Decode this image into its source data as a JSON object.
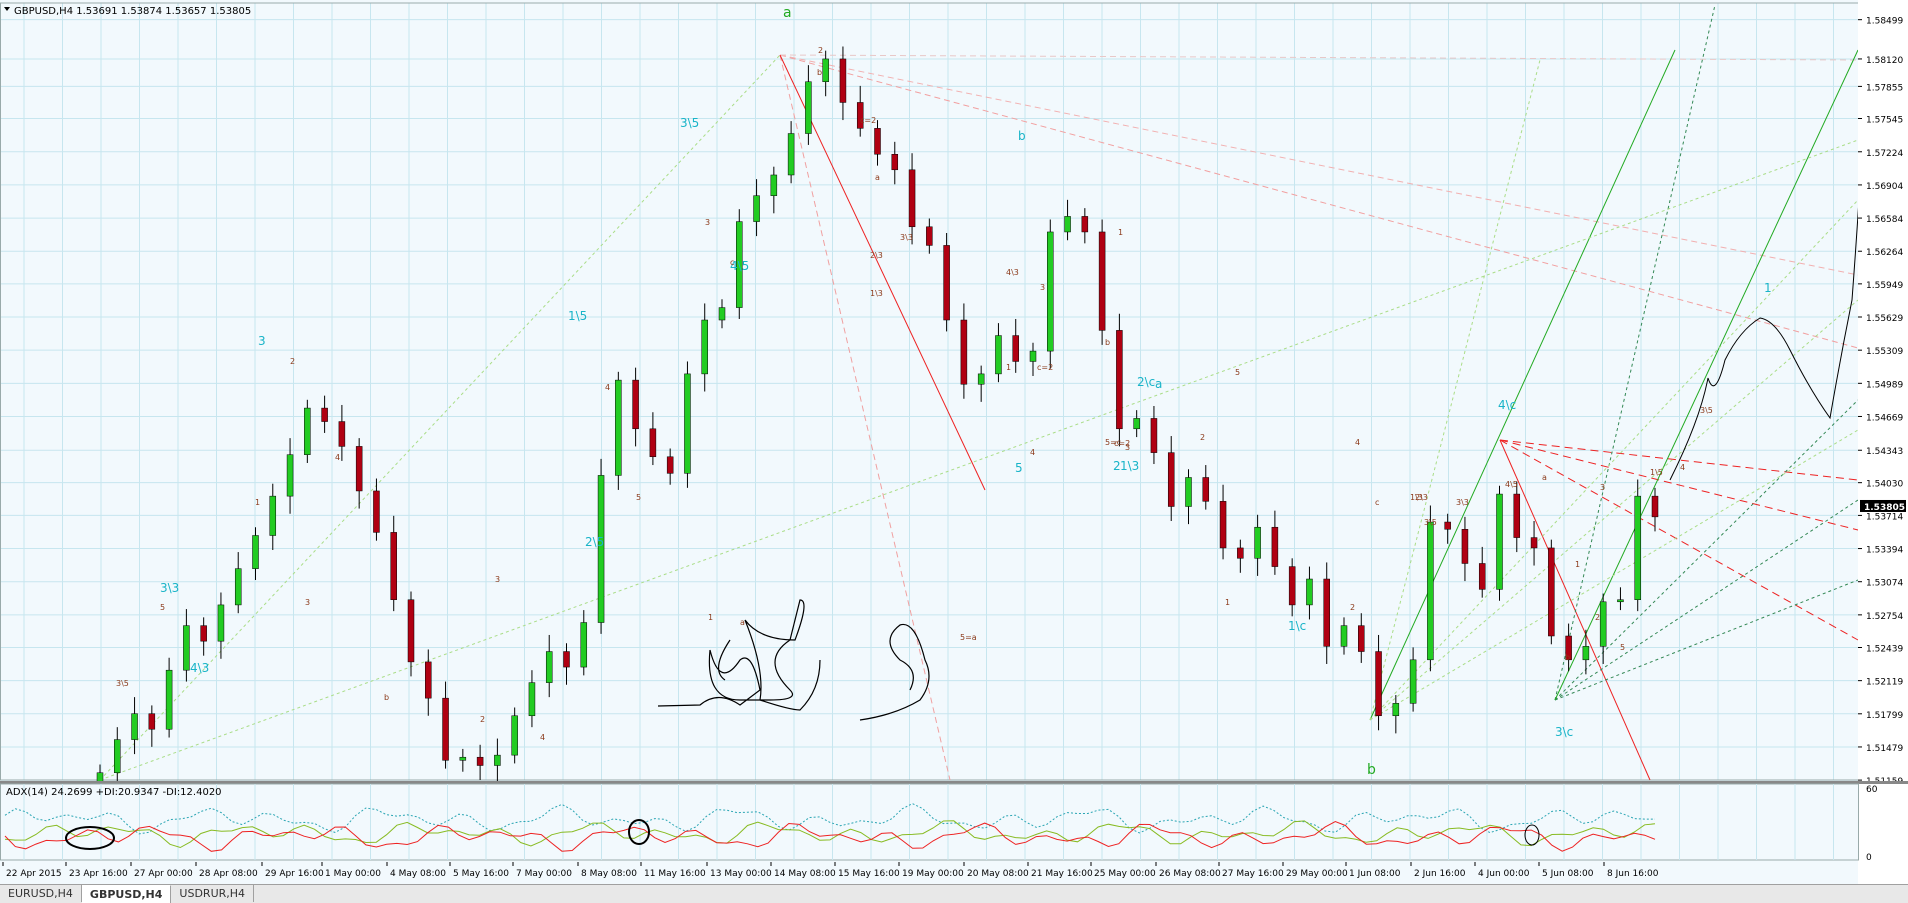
{
  "window": {
    "symbol_header": "GBPUSD,H4  1.53691 1.53874 1.53657 1.53805",
    "indicator_header": "ADX(14) 24.2699 +DI:20.9347 -DI:12.4020"
  },
  "tabs": [
    {
      "label": "EURUSD,H4",
      "active": false
    },
    {
      "label": "GBPUSD,H4",
      "active": true
    },
    {
      "label": "USDRUR,H4",
      "active": false
    }
  ],
  "colors": {
    "background": "#f2f9fd",
    "grid": "#c7e6ef",
    "bull": "#22cc22",
    "bear": "#b00012",
    "wave_label_cyan": "#19b4c8",
    "wave_label_green": "#22aa22",
    "wave_label_brown": "#8b3a1a",
    "adx": "#2aa5b3",
    "plus_di": "#88bb22",
    "minus_di": "#ee2222"
  },
  "chart_data": {
    "type": "candlestick",
    "symbol": "GBPUSD",
    "timeframe": "H4",
    "price_axis": {
      "ticks": [
        "1.58499",
        "1.58120",
        "1.57855",
        "1.57545",
        "1.57224",
        "1.56904",
        "1.56584",
        "1.56264",
        "1.55949",
        "1.55629",
        "1.55309",
        "1.54989",
        "1.54669",
        "1.54343",
        "1.54030",
        "1.53714",
        "1.53394",
        "1.53074",
        "1.52754",
        "1.52439",
        "1.52119",
        "1.51799",
        "1.51479",
        "1.51159"
      ],
      "current_price": "1.53805",
      "ylim": [
        1.5116,
        1.5866
      ]
    },
    "time_axis": {
      "labels": [
        "22 Apr 2015",
        "23 Apr 16:00",
        "27 Apr 00:00",
        "28 Apr 08:00",
        "29 Apr 16:00",
        "1 May 00:00",
        "4 May 08:00",
        "5 May 16:00",
        "7 May 00:00",
        "8 May 08:00",
        "11 May 16:00",
        "13 May 00:00",
        "14 May 08:00",
        "15 May 16:00",
        "19 May 00:00",
        "20 May 08:00",
        "21 May 16:00",
        "25 May 00:00",
        "26 May 08:00",
        "27 May 16:00",
        "29 May 00:00",
        "1 Jun 08:00",
        "2 Jun 16:00",
        "4 Jun 00:00",
        "5 Jun 08:00",
        "8 Jun 16:00"
      ]
    },
    "close_path": [
      1.5123,
      1.5155,
      1.518,
      1.5165,
      1.5222,
      1.5265,
      1.525,
      1.5285,
      1.532,
      1.5352,
      1.539,
      1.543,
      1.5475,
      1.5462,
      1.5438,
      1.5395,
      1.5355,
      1.529,
      1.523,
      1.5195,
      1.5135,
      1.5138,
      1.513,
      1.514,
      1.5178,
      1.521,
      1.524,
      1.5225,
      1.5268,
      1.541,
      1.5502,
      1.5455,
      1.5428,
      1.5412,
      1.5508,
      1.556,
      1.5572,
      1.5655,
      1.568,
      1.57,
      1.574,
      1.579,
      1.5812,
      1.577,
      1.5745,
      1.572,
      1.5705,
      1.565,
      1.5632,
      1.556,
      1.5498,
      1.5508,
      1.5545,
      1.552,
      1.553,
      1.5645,
      1.566,
      1.5645,
      1.555,
      1.5455,
      1.5465,
      1.5432,
      1.538,
      1.5408,
      1.5385,
      1.534,
      1.533,
      1.536,
      1.5322,
      1.5285,
      1.531,
      1.5245,
      1.5265,
      1.524,
      1.5178,
      1.519,
      1.5232,
      1.5365,
      1.5358,
      1.5325,
      1.53,
      1.5392,
      1.535,
      1.534,
      1.5255,
      1.5232,
      1.5245,
      1.5288,
      1.529,
      1.539,
      1.537
    ],
    "adx": {
      "params": "14",
      "adx": 24.2699,
      "plus_di": 20.9347,
      "minus_di": 12.402,
      "ylim": [
        0,
        60
      ],
      "ticks": [
        "60",
        "0"
      ]
    },
    "wave_labels": {
      "cyan": [
        "3\\3",
        "4\\3",
        "3",
        "2\\5",
        "1\\5",
        "3\\5",
        "4\\5",
        "5",
        "b",
        "a",
        "2\\c",
        "1\\c",
        "4\\c",
        "3\\c",
        "1",
        "2",
        "1\\3"
      ],
      "green": [
        "a",
        "b"
      ],
      "brown": [
        "3\\5",
        "5",
        "2",
        "4",
        "3",
        "1",
        "b",
        "2",
        "3",
        "4",
        "5",
        "c",
        "3",
        "4",
        "a",
        "1",
        "b",
        "2",
        "c=2",
        "a",
        "2\\3",
        "1\\3",
        "3\\3",
        "4\\3",
        "3",
        "5=a",
        "1",
        "c=2",
        "b",
        "5=c",
        "c=2",
        "4",
        "1",
        "3",
        "2",
        "1",
        "5",
        "4",
        "2",
        "c",
        "1\\3",
        "2\\3",
        "3\\3",
        "3\\5",
        "4\\5",
        "a",
        "b",
        "3",
        "1",
        "5",
        "2",
        "1\\5",
        "4",
        "3\\5"
      ]
    },
    "handwriting": "APQ"
  }
}
